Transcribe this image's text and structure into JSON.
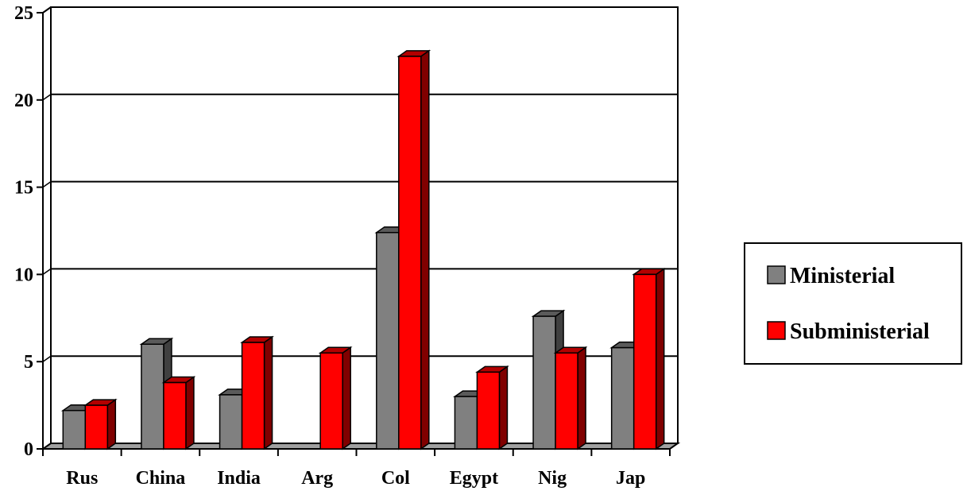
{
  "chart_data": {
    "type": "bar",
    "style": "3d-clustered",
    "categories": [
      "Rus",
      "China",
      "India",
      "Arg",
      "Col",
      "Egypt",
      "Nig",
      "Jap"
    ],
    "series": [
      {
        "name": "Ministerial",
        "color": "#808080",
        "values": [
          2.2,
          6.0,
          3.1,
          0,
          12.4,
          3.0,
          7.6,
          5.8
        ]
      },
      {
        "name": "Subministerial",
        "color": "#ff0000",
        "values": [
          2.5,
          3.8,
          6.1,
          5.5,
          22.5,
          4.4,
          5.5,
          10.0
        ]
      }
    ],
    "yticks": [
      0,
      5,
      10,
      15,
      20,
      25
    ],
    "ylim": [
      0,
      25
    ],
    "grid": true,
    "legend_position": "right"
  }
}
